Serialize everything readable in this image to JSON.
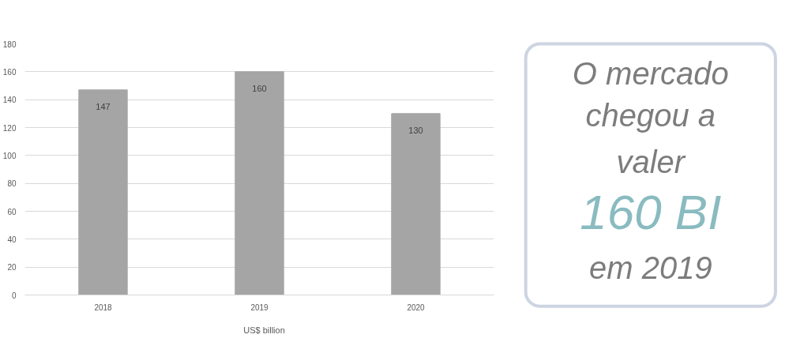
{
  "chart_data": [
    {
      "type": "bar",
      "categories": [
        "2018",
        "2019",
        "2020"
      ],
      "series": [
        {
          "name": "US$ billion",
          "color": "#a5a5a5",
          "values": [
            147,
            160,
            130
          ]
        }
      ],
      "ylim": [
        0,
        180
      ],
      "yticks": [
        0,
        20,
        40,
        60,
        80,
        100,
        120,
        140,
        160,
        180
      ],
      "grid": "y",
      "legend": "bottom",
      "data_labels": true
    },
    {
      "type": "other",
      "annotations": [
        "O mercado",
        "chegou a",
        "valer",
        "160 BI",
        "em 2019"
      ]
    }
  ]
}
